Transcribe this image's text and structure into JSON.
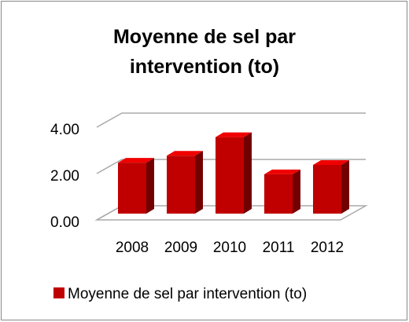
{
  "chart_data": {
    "type": "bar3d",
    "title": "Moyenne de sel par intervention (to)",
    "categories": [
      "2008",
      "2009",
      "2010",
      "2011",
      "2012"
    ],
    "series": [
      {
        "name": "Moyenne de sel par intervention (to)",
        "color": "#c00000",
        "values": [
          2.2,
          2.5,
          3.3,
          1.7,
          2.1
        ]
      }
    ],
    "ylim": [
      0,
      4
    ],
    "yticks": [
      {
        "value": 0,
        "label": "0.00"
      },
      {
        "value": 2,
        "label": "2.00"
      },
      {
        "value": 4,
        "label": "4.00"
      }
    ],
    "grid": true,
    "legend": "bottom"
  }
}
